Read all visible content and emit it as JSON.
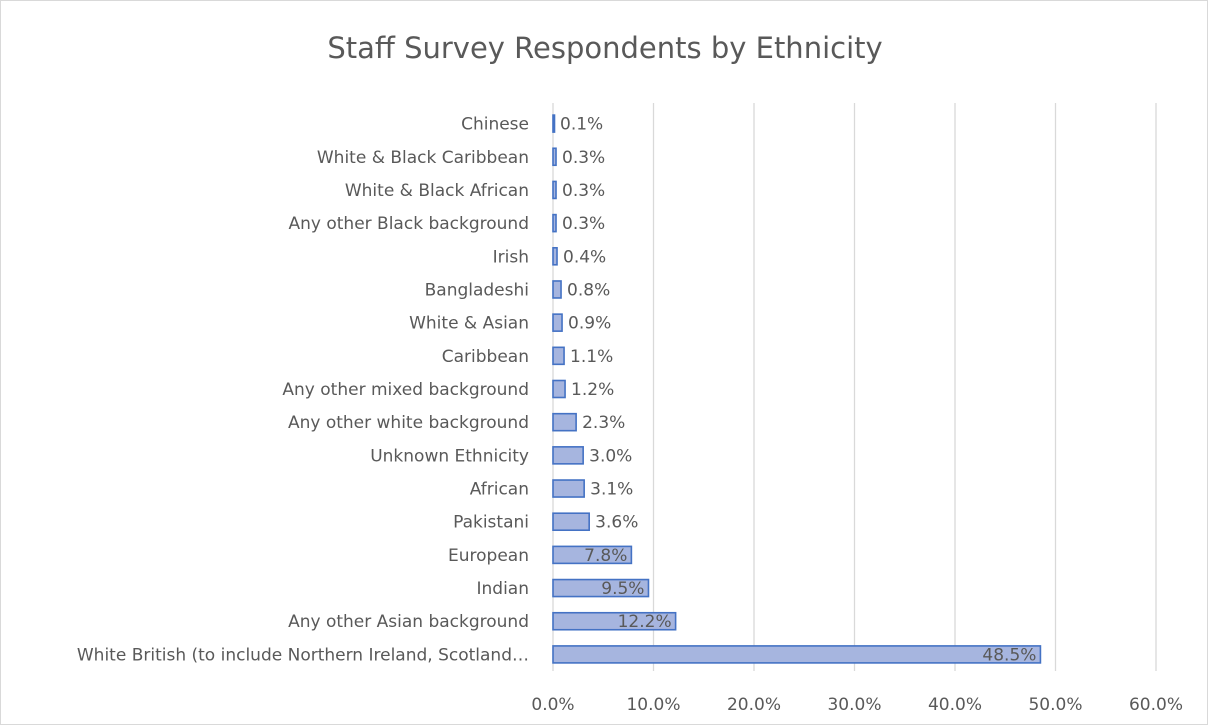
{
  "chart_data": {
    "type": "bar",
    "orientation": "horizontal",
    "title": "Staff Survey Respondents by Ethnicity",
    "xlabel": "",
    "ylabel": "",
    "xlim": [
      0,
      60
    ],
    "x_ticks": [
      "0.0%",
      "10.0%",
      "20.0%",
      "30.0%",
      "40.0%",
      "50.0%",
      "60.0%"
    ],
    "grid": "vertical",
    "legend": "none",
    "categories": [
      "Chinese",
      "White & Black Caribbean",
      "White & Black African",
      "Any other Black background",
      "Irish",
      "Bangladeshi",
      "White & Asian",
      "Caribbean",
      "Any other mixed background",
      "Any other white background",
      "Unknown Ethnicity",
      "African",
      "Pakistani",
      "European",
      "Indian",
      "Any other Asian background",
      "White British (to include Northern Ireland, Scotland…"
    ],
    "values": [
      0.1,
      0.3,
      0.3,
      0.3,
      0.4,
      0.8,
      0.9,
      1.1,
      1.2,
      2.3,
      3.0,
      3.1,
      3.6,
      7.8,
      9.5,
      12.2,
      48.5
    ],
    "data_labels": [
      "0.1%",
      "0.3%",
      "0.3%",
      "0.3%",
      "0.4%",
      "0.8%",
      "0.9%",
      "1.1%",
      "1.2%",
      "2.3%",
      "3.0%",
      "3.1%",
      "3.6%",
      "7.8%",
      "9.5%",
      "12.2%",
      "48.5%"
    ],
    "colors": {
      "bar_fill": "#a6b5df",
      "bar_stroke": "#4472c4",
      "grid": "#d9d9d9",
      "text": "#595959"
    }
  }
}
